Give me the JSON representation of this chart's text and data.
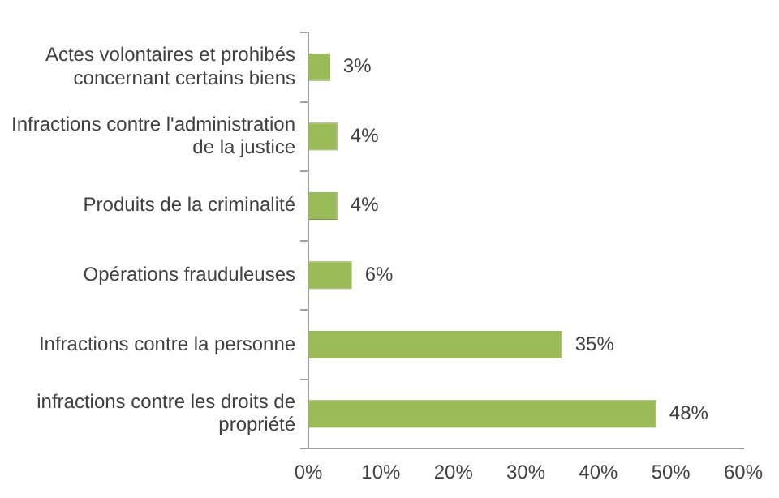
{
  "chart_data": {
    "type": "bar",
    "orientation": "horizontal",
    "categories": [
      "Actes volontaires et prohibés concernant certains biens",
      "Infractions contre l'administration de la justice",
      "Produits de la criminalité",
      "Opérations frauduleuses",
      "Infractions contre la personne",
      "infractions contre les droits de propriété"
    ],
    "values": [
      3,
      4,
      4,
      6,
      35,
      48
    ],
    "value_labels": [
      "3%",
      "4%",
      "4%",
      "6%",
      "35%",
      "48%"
    ],
    "color": "#9bbb59",
    "xlim": [
      0,
      60
    ],
    "xticks": [
      {
        "value": 0,
        "label": "0%"
      },
      {
        "value": 10,
        "label": "10%"
      },
      {
        "value": 20,
        "label": "20%"
      },
      {
        "value": 30,
        "label": "30%"
      },
      {
        "value": 40,
        "label": "40%"
      },
      {
        "value": 50,
        "label": "50%"
      },
      {
        "value": 60,
        "label": "60%"
      }
    ],
    "grid": false,
    "legend": false
  }
}
